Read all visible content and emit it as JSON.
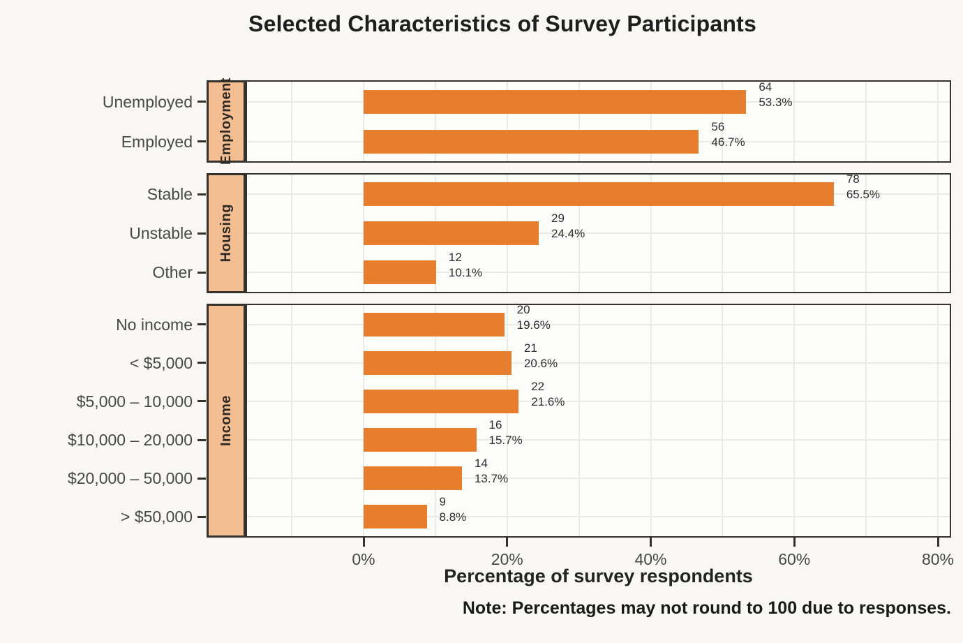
{
  "chart_data": {
    "type": "bar",
    "orientation": "horizontal",
    "title": "Selected Characteristics of Survey Participants",
    "xlabel": "Percentage of survey respondents",
    "note": "Note: Percentages may not round to 100 due to responses.",
    "x_axis": {
      "ticks": [
        0,
        20,
        40,
        60,
        80
      ],
      "tick_labels": [
        "0%",
        "20%",
        "40%",
        "60%",
        "80%"
      ],
      "unit": "%",
      "gridline_step_pct": 10,
      "grid": "on",
      "visible_range_pct": [
        -16.5,
        84.5
      ]
    },
    "legend": "none",
    "bar_color": "#E67E2E",
    "strip_fill": "#F3BE92",
    "strip_border": "#35322E",
    "panel_border": "#35322E",
    "gridline_color": "#ECEAE6",
    "background_color": "#FAF8F5",
    "panels": [
      {
        "facet": "Employment",
        "rows": [
          {
            "label": "Unemployed",
            "count": 64,
            "pct": 53.3
          },
          {
            "label": "Employed",
            "count": 56,
            "pct": 46.7
          }
        ]
      },
      {
        "facet": "Housing",
        "rows": [
          {
            "label": "Stable",
            "count": 78,
            "pct": 65.5
          },
          {
            "label": "Unstable",
            "count": 29,
            "pct": 24.4
          },
          {
            "label": "Other",
            "count": 12,
            "pct": 10.1
          }
        ]
      },
      {
        "facet": "Income",
        "rows": [
          {
            "label": "No income",
            "count": 20,
            "pct": 19.6
          },
          {
            "label": "< $5,000",
            "count": 21,
            "pct": 20.6
          },
          {
            "label": "$5,000 – 10,000",
            "count": 22,
            "pct": 21.6
          },
          {
            "label": "$10,000 – 20,000",
            "count": 16,
            "pct": 15.7
          },
          {
            "label": "$20,000 – 50,000",
            "count": 14,
            "pct": 13.7
          },
          {
            "label": "> $50,000",
            "count": 9,
            "pct": 8.8
          }
        ]
      }
    ]
  }
}
